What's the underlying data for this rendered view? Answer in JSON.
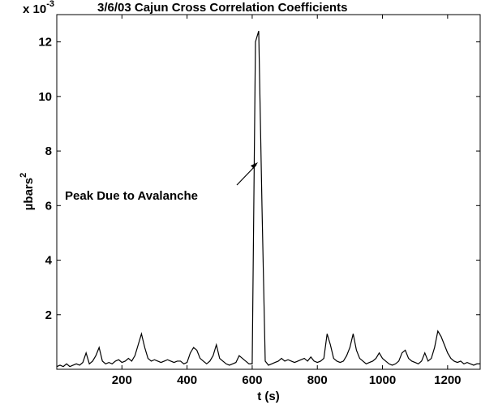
{
  "chart_data": {
    "type": "line",
    "title": "3/6/03 Cajun Cross Correlation Coefficients",
    "multiplier": {
      "base": "x 10",
      "sup": "-3"
    },
    "xlabel": "t (s)",
    "ylabel": {
      "base": "µbars",
      "sup": "2"
    },
    "annotation": "Peak Due to Avalanche",
    "color": "#000000",
    "xlim": [
      0,
      1300
    ],
    "xticks": [
      200,
      400,
      600,
      800,
      1000,
      1200
    ],
    "ylim": [
      0,
      13
    ],
    "yticks": [
      2,
      4,
      6,
      8,
      10,
      12
    ],
    "x": [
      0,
      10,
      20,
      30,
      40,
      50,
      60,
      70,
      80,
      90,
      100,
      110,
      120,
      130,
      140,
      150,
      160,
      170,
      180,
      190,
      200,
      210,
      220,
      230,
      240,
      250,
      260,
      270,
      280,
      290,
      300,
      310,
      320,
      330,
      340,
      350,
      360,
      370,
      380,
      390,
      400,
      410,
      420,
      430,
      440,
      450,
      460,
      470,
      480,
      490,
      500,
      510,
      520,
      530,
      540,
      550,
      560,
      570,
      580,
      590,
      600,
      610,
      620,
      630,
      640,
      650,
      660,
      670,
      680,
      690,
      700,
      710,
      720,
      730,
      740,
      750,
      760,
      770,
      780,
      790,
      800,
      810,
      820,
      830,
      840,
      850,
      860,
      870,
      880,
      890,
      900,
      910,
      920,
      930,
      940,
      950,
      960,
      970,
      980,
      990,
      1000,
      1010,
      1020,
      1030,
      1040,
      1050,
      1060,
      1070,
      1080,
      1090,
      1100,
      1110,
      1120,
      1130,
      1140,
      1150,
      1160,
      1170,
      1180,
      1190,
      1200,
      1210,
      1220,
      1230,
      1240,
      1250,
      1260,
      1270,
      1280,
      1290,
      1300
    ],
    "values": [
      0.1,
      0.15,
      0.1,
      0.2,
      0.1,
      0.15,
      0.2,
      0.15,
      0.25,
      0.6,
      0.2,
      0.3,
      0.5,
      0.8,
      0.3,
      0.2,
      0.25,
      0.2,
      0.3,
      0.35,
      0.25,
      0.3,
      0.4,
      0.3,
      0.5,
      0.9,
      1.3,
      0.8,
      0.4,
      0.3,
      0.35,
      0.3,
      0.25,
      0.3,
      0.35,
      0.3,
      0.25,
      0.3,
      0.3,
      0.2,
      0.25,
      0.6,
      0.8,
      0.7,
      0.4,
      0.3,
      0.2,
      0.3,
      0.5,
      0.9,
      0.4,
      0.3,
      0.2,
      0.15,
      0.2,
      0.25,
      0.5,
      0.4,
      0.3,
      0.2,
      0.2,
      12.0,
      12.4,
      6.0,
      0.3,
      0.15,
      0.2,
      0.25,
      0.3,
      0.4,
      0.3,
      0.35,
      0.3,
      0.25,
      0.3,
      0.35,
      0.4,
      0.3,
      0.45,
      0.3,
      0.25,
      0.3,
      0.4,
      1.3,
      0.9,
      0.4,
      0.3,
      0.25,
      0.3,
      0.5,
      0.8,
      1.3,
      0.7,
      0.4,
      0.3,
      0.2,
      0.25,
      0.3,
      0.4,
      0.6,
      0.4,
      0.3,
      0.2,
      0.15,
      0.2,
      0.3,
      0.6,
      0.7,
      0.4,
      0.3,
      0.25,
      0.2,
      0.3,
      0.6,
      0.3,
      0.4,
      0.8,
      1.4,
      1.2,
      0.9,
      0.6,
      0.4,
      0.3,
      0.25,
      0.3,
      0.2,
      0.25,
      0.2,
      0.15,
      0.2,
      0.2
    ]
  }
}
